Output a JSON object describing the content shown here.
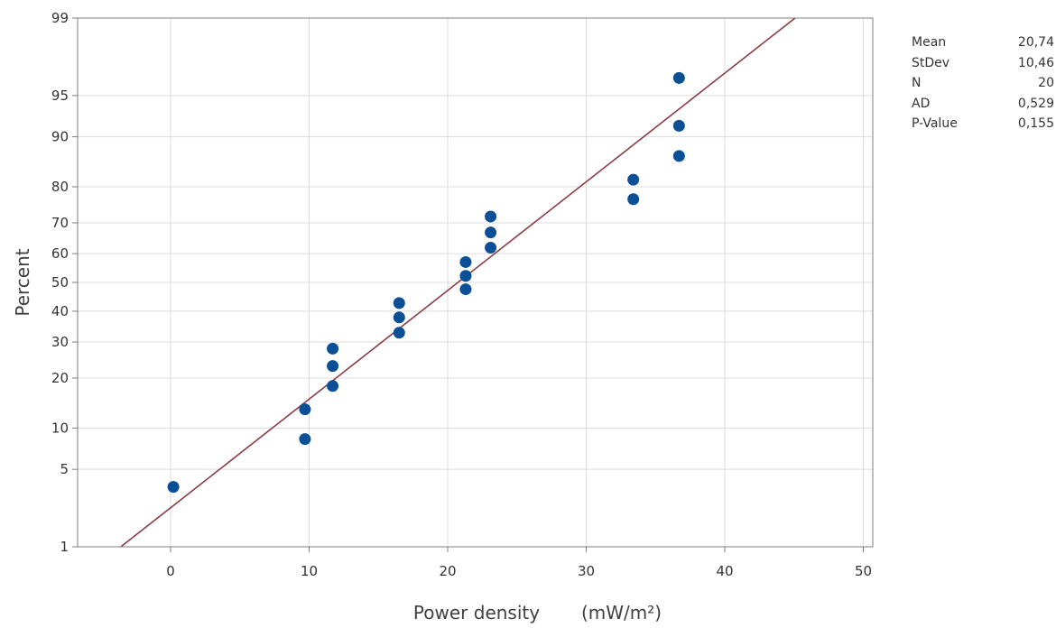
{
  "chart_data": {
    "type": "scatter",
    "subtype": "normal-probability-plot",
    "xlabel": "Power density",
    "xunit": "(mW/m²)",
    "ylabel": "Percent",
    "xlim": [
      -7,
      51
    ],
    "ylim_percent": [
      1,
      99
    ],
    "y_scale": "normal-probability",
    "grid": true,
    "x_ticks": [
      0,
      10,
      20,
      30,
      40,
      50
    ],
    "y_ticks": [
      1,
      5,
      10,
      20,
      30,
      40,
      50,
      60,
      70,
      80,
      90,
      95,
      99
    ],
    "points": [
      {
        "x": 0.2,
        "y": 3.6
      },
      {
        "x": 9.7,
        "y": 8.4
      },
      {
        "x": 9.7,
        "y": 13.2
      },
      {
        "x": 11.7,
        "y": 18.1
      },
      {
        "x": 11.7,
        "y": 23.1
      },
      {
        "x": 11.7,
        "y": 28.0
      },
      {
        "x": 16.5,
        "y": 32.9
      },
      {
        "x": 16.5,
        "y": 37.9
      },
      {
        "x": 16.5,
        "y": 42.8
      },
      {
        "x": 21.3,
        "y": 47.6
      },
      {
        "x": 21.3,
        "y": 52.3
      },
      {
        "x": 21.3,
        "y": 57.1
      },
      {
        "x": 23.1,
        "y": 62.0
      },
      {
        "x": 23.1,
        "y": 67.0
      },
      {
        "x": 23.1,
        "y": 71.9
      },
      {
        "x": 33.4,
        "y": 76.8
      },
      {
        "x": 33.4,
        "y": 81.7
      },
      {
        "x": 36.7,
        "y": 86.7
      },
      {
        "x": 36.7,
        "y": 91.6
      },
      {
        "x": 36.7,
        "y": 96.4
      }
    ],
    "fit_line": {
      "mean": 20.74,
      "stdev": 10.46
    },
    "colors": {
      "points": "#0b4f96",
      "fit_line": "#8a3b45",
      "grid": "#dcdcdc",
      "axis": "#7f7f7f"
    }
  },
  "stats": [
    {
      "label": "Mean",
      "value": "20,74"
    },
    {
      "label": "StDev",
      "value": "10,46"
    },
    {
      "label": "N",
      "value": "20"
    },
    {
      "label": "AD",
      "value": "0,529"
    },
    {
      "label": "P-Value",
      "value": "0,155"
    }
  ]
}
